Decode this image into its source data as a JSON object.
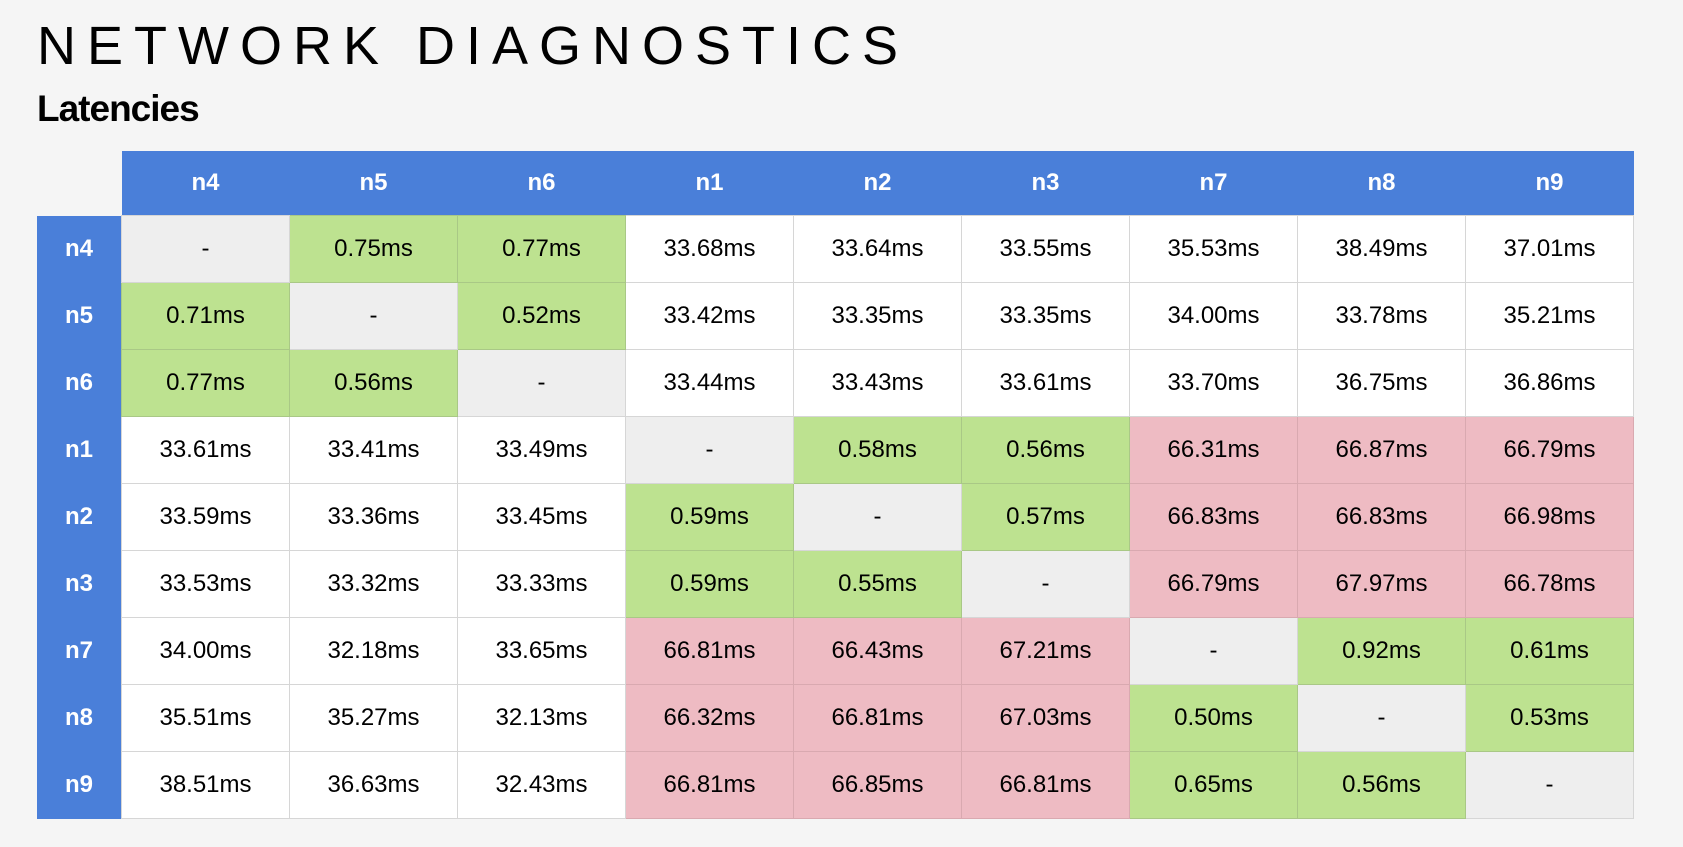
{
  "header": {
    "title": "NETWORK DIAGNOSTICS",
    "subtitle": "Latencies"
  },
  "colors": {
    "header": "#4a7fd9",
    "self": "#eeeeee",
    "low": "#bde290",
    "high": "#eebbc3",
    "normal": "#ffffff",
    "background": "#f5f5f5"
  },
  "table": {
    "columns": [
      "n4",
      "n5",
      "n6",
      "n1",
      "n2",
      "n3",
      "n7",
      "n8",
      "n9"
    ],
    "rows": [
      {
        "label": "n4",
        "cells": [
          {
            "v": "-",
            "s": "self"
          },
          {
            "v": "0.75ms",
            "s": "low"
          },
          {
            "v": "0.77ms",
            "s": "low"
          },
          {
            "v": "33.68ms",
            "s": "normal"
          },
          {
            "v": "33.64ms",
            "s": "normal"
          },
          {
            "v": "33.55ms",
            "s": "normal"
          },
          {
            "v": "35.53ms",
            "s": "normal"
          },
          {
            "v": "38.49ms",
            "s": "normal"
          },
          {
            "v": "37.01ms",
            "s": "normal"
          }
        ]
      },
      {
        "label": "n5",
        "cells": [
          {
            "v": "0.71ms",
            "s": "low"
          },
          {
            "v": "-",
            "s": "self"
          },
          {
            "v": "0.52ms",
            "s": "low"
          },
          {
            "v": "33.42ms",
            "s": "normal"
          },
          {
            "v": "33.35ms",
            "s": "normal"
          },
          {
            "v": "33.35ms",
            "s": "normal"
          },
          {
            "v": "34.00ms",
            "s": "normal"
          },
          {
            "v": "33.78ms",
            "s": "normal"
          },
          {
            "v": "35.21ms",
            "s": "normal"
          }
        ]
      },
      {
        "label": "n6",
        "cells": [
          {
            "v": "0.77ms",
            "s": "low"
          },
          {
            "v": "0.56ms",
            "s": "low"
          },
          {
            "v": "-",
            "s": "self"
          },
          {
            "v": "33.44ms",
            "s": "normal"
          },
          {
            "v": "33.43ms",
            "s": "normal"
          },
          {
            "v": "33.61ms",
            "s": "normal"
          },
          {
            "v": "33.70ms",
            "s": "normal"
          },
          {
            "v": "36.75ms",
            "s": "normal"
          },
          {
            "v": "36.86ms",
            "s": "normal"
          }
        ]
      },
      {
        "label": "n1",
        "cells": [
          {
            "v": "33.61ms",
            "s": "normal"
          },
          {
            "v": "33.41ms",
            "s": "normal"
          },
          {
            "v": "33.49ms",
            "s": "normal"
          },
          {
            "v": "-",
            "s": "self"
          },
          {
            "v": "0.58ms",
            "s": "low"
          },
          {
            "v": "0.56ms",
            "s": "low"
          },
          {
            "v": "66.31ms",
            "s": "high"
          },
          {
            "v": "66.87ms",
            "s": "high"
          },
          {
            "v": "66.79ms",
            "s": "high"
          }
        ]
      },
      {
        "label": "n2",
        "cells": [
          {
            "v": "33.59ms",
            "s": "normal"
          },
          {
            "v": "33.36ms",
            "s": "normal"
          },
          {
            "v": "33.45ms",
            "s": "normal"
          },
          {
            "v": "0.59ms",
            "s": "low"
          },
          {
            "v": "-",
            "s": "self"
          },
          {
            "v": "0.57ms",
            "s": "low"
          },
          {
            "v": "66.83ms",
            "s": "high"
          },
          {
            "v": "66.83ms",
            "s": "high"
          },
          {
            "v": "66.98ms",
            "s": "high"
          }
        ]
      },
      {
        "label": "n3",
        "cells": [
          {
            "v": "33.53ms",
            "s": "normal"
          },
          {
            "v": "33.32ms",
            "s": "normal"
          },
          {
            "v": "33.33ms",
            "s": "normal"
          },
          {
            "v": "0.59ms",
            "s": "low"
          },
          {
            "v": "0.55ms",
            "s": "low"
          },
          {
            "v": "-",
            "s": "self"
          },
          {
            "v": "66.79ms",
            "s": "high"
          },
          {
            "v": "67.97ms",
            "s": "high"
          },
          {
            "v": "66.78ms",
            "s": "high"
          }
        ]
      },
      {
        "label": "n7",
        "cells": [
          {
            "v": "34.00ms",
            "s": "normal"
          },
          {
            "v": "32.18ms",
            "s": "normal"
          },
          {
            "v": "33.65ms",
            "s": "normal"
          },
          {
            "v": "66.81ms",
            "s": "high"
          },
          {
            "v": "66.43ms",
            "s": "high"
          },
          {
            "v": "67.21ms",
            "s": "high"
          },
          {
            "v": "-",
            "s": "self"
          },
          {
            "v": "0.92ms",
            "s": "low"
          },
          {
            "v": "0.61ms",
            "s": "low"
          }
        ]
      },
      {
        "label": "n8",
        "cells": [
          {
            "v": "35.51ms",
            "s": "normal"
          },
          {
            "v": "35.27ms",
            "s": "normal"
          },
          {
            "v": "32.13ms",
            "s": "normal"
          },
          {
            "v": "66.32ms",
            "s": "high"
          },
          {
            "v": "66.81ms",
            "s": "high"
          },
          {
            "v": "67.03ms",
            "s": "high"
          },
          {
            "v": "0.50ms",
            "s": "low"
          },
          {
            "v": "-",
            "s": "self"
          },
          {
            "v": "0.53ms",
            "s": "low"
          }
        ]
      },
      {
        "label": "n9",
        "cells": [
          {
            "v": "38.51ms",
            "s": "normal"
          },
          {
            "v": "36.63ms",
            "s": "normal"
          },
          {
            "v": "32.43ms",
            "s": "normal"
          },
          {
            "v": "66.81ms",
            "s": "high"
          },
          {
            "v": "66.85ms",
            "s": "high"
          },
          {
            "v": "66.81ms",
            "s": "high"
          },
          {
            "v": "0.65ms",
            "s": "low"
          },
          {
            "v": "0.56ms",
            "s": "low"
          },
          {
            "v": "-",
            "s": "self"
          }
        ]
      }
    ]
  }
}
